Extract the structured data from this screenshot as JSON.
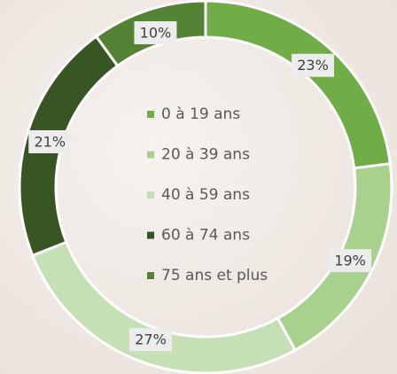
{
  "chart_data": {
    "type": "donut",
    "categories": [
      "0 à 19 ans",
      "20 à 39 ans",
      "40 à 59 ans",
      "60 à 74 ans",
      "75 ans et plus"
    ],
    "values": [
      23,
      19,
      27,
      21,
      10
    ],
    "value_labels": [
      "23%",
      "19%",
      "27%",
      "21%",
      "10%"
    ],
    "colors": [
      "#70ad47",
      "#a9d18e",
      "#c5e0b4",
      "#375623",
      "#548235"
    ]
  }
}
